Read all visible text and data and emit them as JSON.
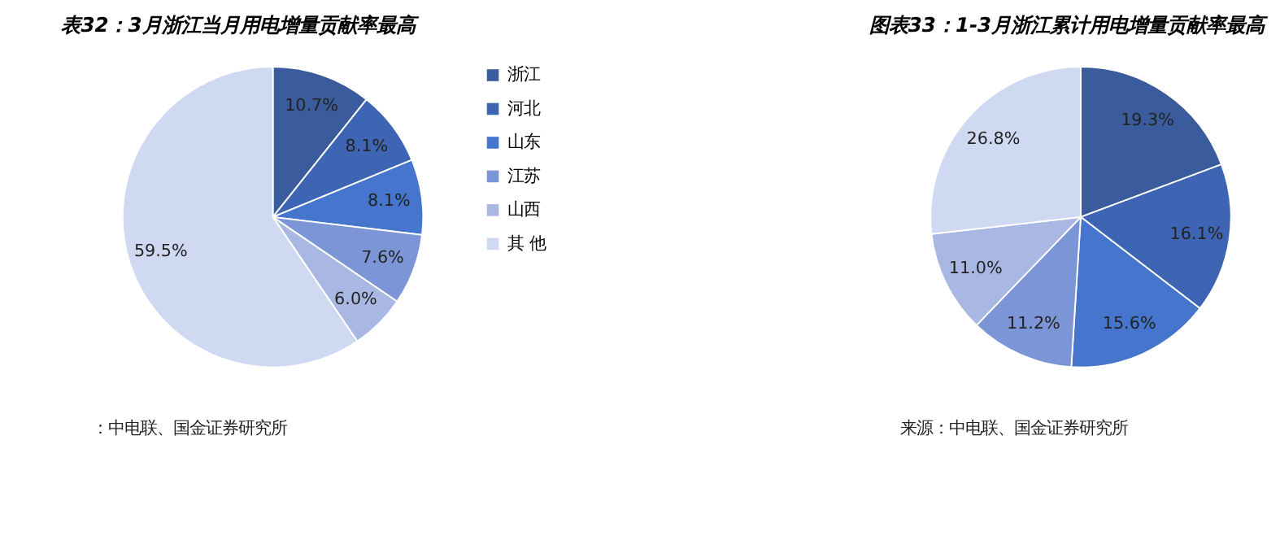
{
  "chart_data": [
    {
      "type": "pie",
      "title": "表32：3月浙江当月用电增量贡献率最高",
      "categories": [
        "浙江",
        "河北",
        "山东",
        "江苏",
        "山西",
        "其 他"
      ],
      "values": [
        10.7,
        8.1,
        8.1,
        7.6,
        6.0,
        59.5
      ],
      "value_labels": [
        "10.7%",
        "8.1%",
        "8.1%",
        "7.6%",
        "6.0%",
        "59.5%"
      ],
      "colors": [
        "#3a5b9c",
        "#3d65b4",
        "#4575cc",
        "#7b95d6",
        "#a8b8e2",
        "#d0d9f2"
      ],
      "legend": "right",
      "annotations": [
        "：中电联、国金证券研究所"
      ]
    },
    {
      "type": "pie",
      "title": "图表33：1-3月浙江累计用电增量贡献率最高",
      "categories": [
        null,
        null,
        null,
        null,
        null,
        null
      ],
      "values": [
        19.3,
        16.1,
        15.6,
        11.2,
        11.0,
        26.8
      ],
      "value_labels": [
        "19.3%",
        "16.1%",
        "15.6%",
        "11.2%",
        "11.0%",
        "26.8%"
      ],
      "colors": [
        "#3a5b9c",
        "#3d65b4",
        "#4575cc",
        "#7b95d6",
        "#a8b8e2",
        "#d0d9f2"
      ],
      "annotations": [
        "来源：中电联、国金证券研究所"
      ]
    }
  ]
}
